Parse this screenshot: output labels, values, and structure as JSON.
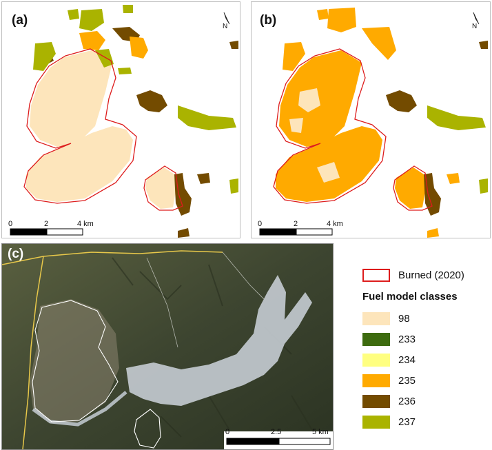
{
  "panels": {
    "a": {
      "label": "(a)"
    },
    "b": {
      "label": "(b)"
    },
    "c": {
      "label": "(c)"
    }
  },
  "north_label": "N",
  "scale_top": {
    "ticks": [
      "0",
      "2",
      "4 km"
    ]
  },
  "scale_bottom": {
    "ticks": [
      "0",
      "2.5",
      "5 km"
    ]
  },
  "legend": {
    "burned_label": "Burned (2020)",
    "heading": "Fuel model classes",
    "classes": [
      {
        "label": "98",
        "color": "#fde5bb"
      },
      {
        "label": "233",
        "color": "#3d6b0f"
      },
      {
        "label": "234",
        "color": "#ffff80"
      },
      {
        "label": "235",
        "color": "#ffaa00"
      },
      {
        "label": "236",
        "color": "#734b00"
      },
      {
        "label": "237",
        "color": "#aab300"
      }
    ],
    "burned_color": "#dd1c1c"
  }
}
